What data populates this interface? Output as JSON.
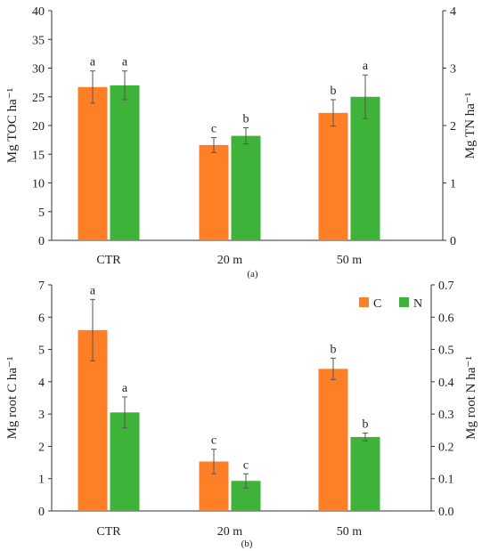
{
  "colors": {
    "C": "#ff7f27",
    "N": "#3fb23a",
    "axis": "#333333",
    "error": "#555555"
  },
  "chart_data": [
    {
      "type": "bar",
      "panel_label": "(a)",
      "categories": [
        "CTR",
        "20 m",
        "50 m"
      ],
      "y_left": {
        "label": "Mg TOC ha⁻¹",
        "ylim": [
          0,
          40
        ],
        "ticks": [
          0,
          5,
          10,
          15,
          20,
          25,
          30,
          35,
          40
        ]
      },
      "y_right": {
        "label": "Mg TN ha⁻¹",
        "ylim": [
          0,
          4
        ],
        "ticks": [
          0,
          1,
          2,
          3,
          4
        ]
      },
      "series": [
        {
          "key": "C",
          "axis": "left",
          "values": [
            26.7,
            16.6,
            22.2
          ],
          "errors": [
            2.8,
            1.3,
            2.3
          ],
          "letters": [
            "a",
            "c",
            "b"
          ]
        },
        {
          "key": "N",
          "axis": "right",
          "values": [
            2.7,
            1.82,
            2.5
          ],
          "errors": [
            0.25,
            0.14,
            0.38
          ],
          "letters": [
            "a",
            "b",
            "a"
          ]
        }
      ],
      "grid": false,
      "legend": "none"
    },
    {
      "type": "bar",
      "panel_label": "(b)",
      "categories": [
        "CTR",
        "20 m",
        "50 m"
      ],
      "y_left": {
        "label": "Mg root C ha⁻¹",
        "ylim": [
          0,
          7
        ],
        "ticks": [
          0,
          1,
          2,
          3,
          4,
          5,
          6,
          7
        ]
      },
      "y_right": {
        "label": "Mg root N ha⁻¹",
        "ylim": [
          0,
          0.7
        ],
        "ticks": [
          "0.0",
          "0.1",
          "0.2",
          "0.3",
          "0.4",
          "0.5",
          "0.6",
          "0.7"
        ]
      },
      "series": [
        {
          "key": "C",
          "name": "C",
          "axis": "left",
          "values": [
            5.6,
            1.53,
            4.4
          ],
          "errors": [
            0.95,
            0.38,
            0.33
          ],
          "letters": [
            "a",
            "c",
            "b"
          ]
        },
        {
          "key": "N",
          "name": "N",
          "axis": "right",
          "values": [
            0.305,
            0.093,
            0.229
          ],
          "errors": [
            0.048,
            0.022,
            0.012
          ],
          "letters": [
            "a",
            "c",
            "b"
          ]
        }
      ],
      "grid": false,
      "legend": "top-right"
    }
  ]
}
